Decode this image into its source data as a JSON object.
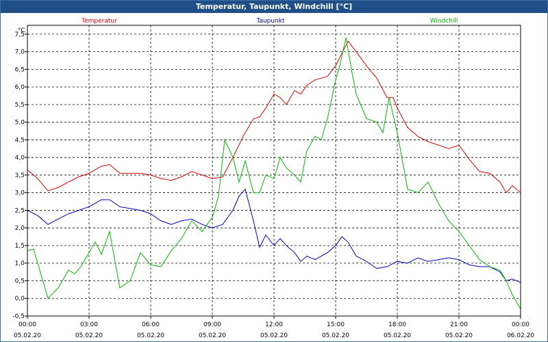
{
  "window": {
    "title": "Temperatur, Taupunkt, Windchill [°C]"
  },
  "chart_data": {
    "type": "line",
    "title": "Temperatur, Taupunkt, Windchill [°C]",
    "ylabel": "°C",
    "xlabel": "",
    "ylim": [
      -0.5,
      7.75
    ],
    "xlim": [
      0,
      24
    ],
    "grid": true,
    "legend_placement": "top",
    "y_ticks": [
      "-0,5",
      "0,0",
      "0,5",
      "1,0",
      "1,5",
      "2,0",
      "2,5",
      "3,0",
      "3,5",
      "4,0",
      "4,5",
      "5,0",
      "5,5",
      "6,0",
      "6,5",
      "7,0",
      "7,5"
    ],
    "y_tick_values": [
      -0.5,
      0,
      0.5,
      1,
      1.5,
      2,
      2.5,
      3,
      3.5,
      4,
      4.5,
      5,
      5.5,
      6,
      6.5,
      7,
      7.5
    ],
    "x_ticks": [
      {
        "time": "00:00",
        "date": "05.02.20",
        "hour": 0
      },
      {
        "time": "03:00",
        "date": "05.02.20",
        "hour": 3
      },
      {
        "time": "06:00",
        "date": "05.02.20",
        "hour": 6
      },
      {
        "time": "09:00",
        "date": "05.02.20",
        "hour": 9
      },
      {
        "time": "12:00",
        "date": "05.02.20",
        "hour": 12
      },
      {
        "time": "15:00",
        "date": "05.02.20",
        "hour": 15
      },
      {
        "time": "18:00",
        "date": "05.02.20",
        "hour": 18
      },
      {
        "time": "21:00",
        "date": "05.02.20",
        "hour": 21
      },
      {
        "time": "00:00",
        "date": "06.02.20",
        "hour": 24
      }
    ],
    "series": [
      {
        "name": "Temperatur",
        "color": "#dd0000",
        "x": [
          0,
          0.5,
          1,
          1.5,
          2,
          2.5,
          3,
          3.3,
          3.6,
          4,
          4.5,
          5,
          5.5,
          6,
          6.5,
          7,
          7.5,
          8,
          8.5,
          9,
          9.5,
          10,
          10.5,
          11,
          11.3,
          11.6,
          12,
          12.3,
          12.6,
          13,
          13.3,
          13.6,
          14,
          14.3,
          14.6,
          15,
          15.3,
          15.6,
          16,
          16.5,
          17,
          17.5,
          17.8,
          18,
          18.5,
          19,
          19.5,
          20,
          20.5,
          21,
          21.5,
          22,
          22.5,
          23,
          23.3,
          23.6,
          24
        ],
        "values": [
          3.65,
          3.4,
          3.05,
          3.15,
          3.3,
          3.45,
          3.55,
          3.65,
          3.75,
          3.8,
          3.55,
          3.55,
          3.55,
          3.5,
          3.4,
          3.35,
          3.45,
          3.6,
          3.5,
          3.4,
          3.45,
          4.0,
          4.6,
          5.1,
          5.15,
          5.4,
          5.8,
          5.7,
          5.5,
          5.9,
          5.8,
          6.05,
          6.2,
          6.25,
          6.3,
          6.6,
          6.95,
          7.3,
          7.0,
          6.6,
          6.25,
          5.7,
          5.7,
          5.4,
          4.85,
          4.6,
          4.45,
          4.35,
          4.25,
          4.35,
          3.95,
          3.6,
          3.55,
          3.3,
          3.0,
          3.2,
          3.0
        ]
      },
      {
        "name": "Taupunkt",
        "color": "#0000bb",
        "x": [
          0,
          0.5,
          1,
          1.5,
          2,
          2.5,
          3,
          3.3,
          3.6,
          4,
          4.5,
          5,
          5.5,
          6,
          6.5,
          7,
          7.5,
          8,
          8.5,
          9,
          9.5,
          10,
          10.3,
          10.6,
          11,
          11.3,
          11.6,
          12,
          12.3,
          12.6,
          13,
          13.3,
          13.6,
          14,
          14.3,
          14.6,
          15,
          15.3,
          15.6,
          16,
          16.5,
          17,
          17.5,
          18,
          18.5,
          19,
          19.5,
          20,
          20.5,
          21,
          21.5,
          22,
          22.5,
          23,
          23.3,
          23.6,
          24
        ],
        "values": [
          2.5,
          2.35,
          2.1,
          2.25,
          2.4,
          2.5,
          2.6,
          2.7,
          2.8,
          2.8,
          2.6,
          2.55,
          2.5,
          2.4,
          2.2,
          2.1,
          2.2,
          2.25,
          2.1,
          2.0,
          2.1,
          2.5,
          2.9,
          3.1,
          2.2,
          1.45,
          1.8,
          1.5,
          1.7,
          1.5,
          1.3,
          1.05,
          1.2,
          1.1,
          1.2,
          1.3,
          1.5,
          1.75,
          1.6,
          1.2,
          1.05,
          0.85,
          0.9,
          1.05,
          1.0,
          1.15,
          1.05,
          1.1,
          1.15,
          1.1,
          0.95,
          0.9,
          0.9,
          0.75,
          0.5,
          0.55,
          0.45
        ]
      },
      {
        "name": "Windchill",
        "color": "#00bb00",
        "x": [
          0,
          0.3,
          0.6,
          1,
          1.5,
          2,
          2.3,
          2.6,
          3,
          3.3,
          3.6,
          4,
          4.5,
          5,
          5.5,
          6,
          6.5,
          7,
          7.5,
          8,
          8.5,
          9,
          9.3,
          9.6,
          10,
          10.3,
          10.6,
          11,
          11.3,
          11.6,
          12,
          12.3,
          12.6,
          13,
          13.3,
          13.6,
          14,
          14.3,
          14.6,
          15,
          15.2,
          15.5,
          15.8,
          16,
          16.5,
          17,
          17.3,
          17.6,
          18,
          18.5,
          19,
          19.5,
          20,
          20.5,
          21,
          21.5,
          22,
          22.5,
          23,
          23.3,
          23.6,
          24
        ],
        "values": [
          1.35,
          1.4,
          0.8,
          0.0,
          0.3,
          0.8,
          0.7,
          0.9,
          1.3,
          1.6,
          1.25,
          1.9,
          0.3,
          0.5,
          1.3,
          0.95,
          0.9,
          1.35,
          1.7,
          2.2,
          1.9,
          2.3,
          2.9,
          4.5,
          4.0,
          3.3,
          3.9,
          3.0,
          3.0,
          3.5,
          3.4,
          4.0,
          3.7,
          3.5,
          3.3,
          4.2,
          4.6,
          4.5,
          5.1,
          6.2,
          6.6,
          7.4,
          6.4,
          5.8,
          5.1,
          5.0,
          4.7,
          5.7,
          4.7,
          3.1,
          3.0,
          3.3,
          2.7,
          2.2,
          1.9,
          1.5,
          1.1,
          0.9,
          0.8,
          0.5,
          0.1,
          -0.3
        ]
      }
    ]
  }
}
